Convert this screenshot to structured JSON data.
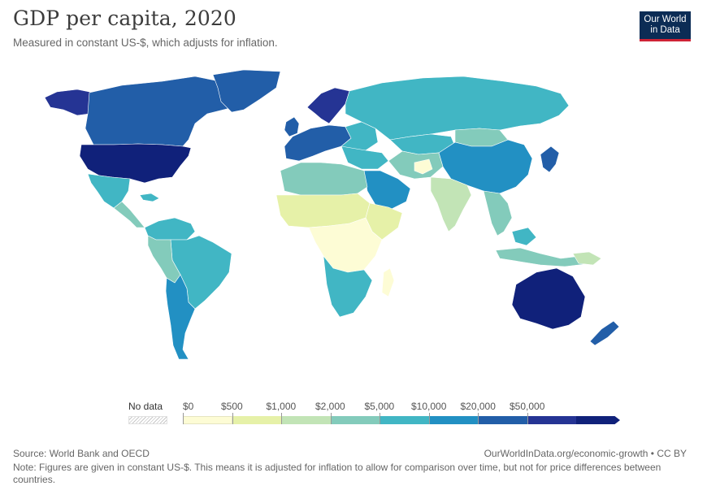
{
  "header": {
    "title": "GDP per capita, 2020",
    "subtitle": "Measured in constant US-$, which adjusts for inflation.",
    "logo_line1": "Our World",
    "logo_line2": "in Data"
  },
  "legend": {
    "no_data_label": "No data",
    "bins": [
      "$0",
      "$500",
      "$1,000",
      "$2,000",
      "$5,000",
      "$10,000",
      "$20,000",
      "$50,000"
    ],
    "colors": [
      "#fdfcd5",
      "#e6f1a8",
      "#c2e4b6",
      "#83cbbb",
      "#41b6c4",
      "#2290c3",
      "#225ea8",
      "#253494",
      "#10217a"
    ],
    "no_data_color": "#eeeeee"
  },
  "footer": {
    "source": "Source: World Bank and OECD",
    "url": "OurWorldInData.org/economic-growth • CC BY",
    "note": "Note: Figures are given in constant US-$. This means it is adjusted for inflation to allow for comparison over time, but not for price differences between countries."
  }
}
